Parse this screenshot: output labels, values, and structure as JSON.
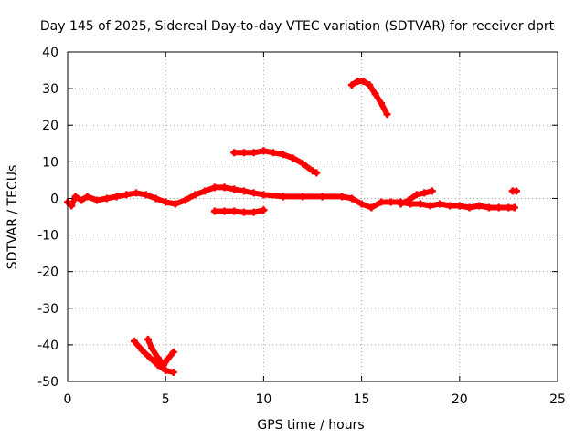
{
  "chart_data": {
    "type": "scatter",
    "title": "Day 145 of 2025, Sidereal Day-to-day VTEC variation (SDTVAR) for receiver dprt",
    "xlabel": "GPS time / hours",
    "ylabel": "SDTVAR / TECUs",
    "xlim": [
      0,
      25
    ],
    "ylim": [
      -50,
      40
    ],
    "xticks": [
      0,
      5,
      10,
      15,
      20,
      25
    ],
    "yticks": [
      -50,
      -40,
      -30,
      -20,
      -10,
      0,
      10,
      20,
      30,
      40
    ],
    "grid": true,
    "marker_color": "#ff0000",
    "series": [
      {
        "name": "main-band",
        "points": [
          [
            0.0,
            -1.0
          ],
          [
            0.2,
            -2.0
          ],
          [
            0.4,
            0.5
          ],
          [
            0.7,
            -0.5
          ],
          [
            1.0,
            0.5
          ],
          [
            1.5,
            -0.5
          ],
          [
            2.0,
            0.0
          ],
          [
            2.5,
            0.5
          ],
          [
            3.0,
            1.0
          ],
          [
            3.5,
            1.5
          ],
          [
            4.0,
            1.0
          ],
          [
            4.5,
            0.0
          ],
          [
            5.0,
            -1.0
          ],
          [
            5.5,
            -1.5
          ],
          [
            6.0,
            -0.5
          ],
          [
            6.5,
            1.0
          ],
          [
            7.0,
            2.0
          ],
          [
            7.5,
            3.0
          ],
          [
            8.0,
            3.0
          ],
          [
            8.5,
            2.5
          ],
          [
            9.0,
            2.0
          ],
          [
            9.5,
            1.5
          ],
          [
            10.0,
            1.0
          ],
          [
            11.0,
            0.5
          ],
          [
            12.0,
            0.5
          ],
          [
            13.0,
            0.5
          ],
          [
            14.0,
            0.5
          ],
          [
            14.5,
            0.0
          ],
          [
            15.0,
            -1.5
          ],
          [
            15.5,
            -2.5
          ],
          [
            16.0,
            -1.0
          ],
          [
            16.5,
            -1.0
          ],
          [
            17.0,
            -1.0
          ],
          [
            17.5,
            -1.5
          ],
          [
            18.0,
            -1.5
          ],
          [
            18.5,
            -2.0
          ],
          [
            19.0,
            -1.5
          ],
          [
            19.5,
            -2.0
          ],
          [
            20.0,
            -2.0
          ],
          [
            20.5,
            -2.5
          ],
          [
            21.0,
            -2.0
          ],
          [
            21.5,
            -2.5
          ],
          [
            22.0,
            -2.5
          ],
          [
            22.5,
            -2.5
          ],
          [
            22.8,
            -2.5
          ]
        ]
      },
      {
        "name": "arc-18h",
        "points": [
          [
            17.0,
            -1.5
          ],
          [
            17.4,
            -0.5
          ],
          [
            17.8,
            1.0
          ],
          [
            18.2,
            1.5
          ],
          [
            18.6,
            2.0
          ]
        ]
      },
      {
        "name": "lower-dash",
        "points": [
          [
            7.5,
            -3.5
          ],
          [
            8.0,
            -3.5
          ],
          [
            8.5,
            -3.5
          ],
          [
            9.0,
            -3.8
          ],
          [
            9.5,
            -3.8
          ],
          [
            10.0,
            -3.2
          ]
        ]
      },
      {
        "name": "arc-10h",
        "points": [
          [
            8.5,
            12.5
          ],
          [
            9.0,
            12.5
          ],
          [
            9.5,
            12.5
          ],
          [
            10.0,
            13.0
          ],
          [
            10.5,
            12.5
          ],
          [
            11.0,
            12.0
          ],
          [
            11.5,
            11.0
          ],
          [
            12.0,
            9.5
          ],
          [
            12.5,
            7.5
          ],
          [
            12.7,
            7.0
          ]
        ]
      },
      {
        "name": "peak-15h",
        "points": [
          [
            14.5,
            31.0
          ],
          [
            14.8,
            32.0
          ],
          [
            15.1,
            32.0
          ],
          [
            15.4,
            31.0
          ],
          [
            15.7,
            28.5
          ],
          [
            16.0,
            26.0
          ],
          [
            16.3,
            23.0
          ]
        ]
      },
      {
        "name": "low-5h-a",
        "points": [
          [
            3.4,
            -39.0
          ],
          [
            3.8,
            -41.5
          ],
          [
            4.2,
            -43.5
          ],
          [
            4.6,
            -45.5
          ],
          [
            5.0,
            -47.0
          ],
          [
            5.4,
            -47.5
          ]
        ]
      },
      {
        "name": "low-5h-b",
        "points": [
          [
            4.1,
            -38.5
          ],
          [
            4.3,
            -41.0
          ],
          [
            4.6,
            -43.5
          ],
          [
            4.9,
            -45.5
          ],
          [
            5.1,
            -44.0
          ],
          [
            5.4,
            -42.0
          ]
        ]
      },
      {
        "name": "dot-22.8h",
        "points": [
          [
            22.7,
            2.0
          ],
          [
            22.9,
            2.0
          ]
        ]
      }
    ]
  }
}
